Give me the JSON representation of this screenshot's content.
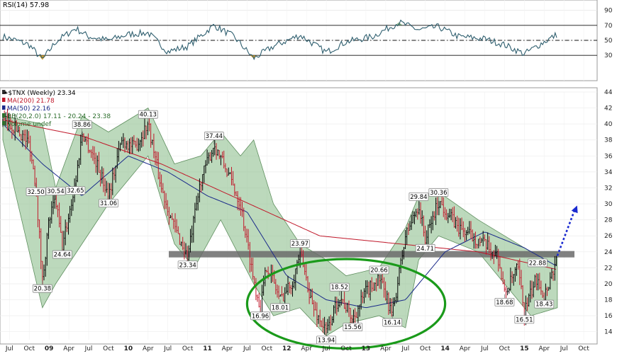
{
  "chart_data": [
    {
      "type": "line",
      "title": "RSI(14) 57.98",
      "indicator": "RSI",
      "period": 14,
      "last_value": 57.98,
      "ylim": [
        0,
        100
      ],
      "y_ticks": [
        30,
        50,
        70,
        90
      ],
      "reference_lines": [
        {
          "value": 70,
          "style": "solid"
        },
        {
          "value": 50,
          "style": "dash-dot"
        },
        {
          "value": 30,
          "style": "solid"
        }
      ],
      "colors": {
        "line": "#2e5e6e",
        "overbought_fill": "#3a7d3a",
        "oversold_fill": "#c8921e"
      },
      "series": [
        {
          "values": [
            {
              "x": "2008-06",
              "y": 55
            },
            {
              "x": "2008-08",
              "y": 50
            },
            {
              "x": "2008-10",
              "y": 44
            },
            {
              "x": "2008-12",
              "y": 24
            },
            {
              "x": "2009-02",
              "y": 48
            },
            {
              "x": "2009-05",
              "y": 66
            },
            {
              "x": "2009-07",
              "y": 55
            },
            {
              "x": "2009-10",
              "y": 50
            },
            {
              "x": "2010-01",
              "y": 58
            },
            {
              "x": "2010-04",
              "y": 60
            },
            {
              "x": "2010-07",
              "y": 35
            },
            {
              "x": "2010-10",
              "y": 42
            },
            {
              "x": "2011-02",
              "y": 70
            },
            {
              "x": "2011-05",
              "y": 55
            },
            {
              "x": "2011-08",
              "y": 26
            },
            {
              "x": "2011-11",
              "y": 42
            },
            {
              "x": "2012-03",
              "y": 57
            },
            {
              "x": "2012-07",
              "y": 34
            },
            {
              "x": "2012-10",
              "y": 48
            },
            {
              "x": "2013-02",
              "y": 55
            },
            {
              "x": "2013-06",
              "y": 74
            },
            {
              "x": "2013-09",
              "y": 64
            },
            {
              "x": "2013-12",
              "y": 68
            },
            {
              "x": "2014-03",
              "y": 55
            },
            {
              "x": "2014-07",
              "y": 52
            },
            {
              "x": "2014-10",
              "y": 44
            },
            {
              "x": "2015-01",
              "y": 32
            },
            {
              "x": "2015-04",
              "y": 48
            },
            {
              "x": "2015-06",
              "y": 58
            }
          ]
        }
      ]
    },
    {
      "type": "line",
      "title": "$TNX (Weekly) 23.34",
      "ylim": [
        13,
        44
      ],
      "y_ticks": [
        14,
        16,
        18,
        20,
        22,
        24,
        26,
        28,
        30,
        32,
        34,
        36,
        38,
        40,
        42,
        44
      ],
      "x_tick_labels": [
        "Jul",
        "Oct",
        "09",
        "Apr",
        "Jul",
        "Oct",
        "10",
        "Apr",
        "Jul",
        "Oct",
        "11",
        "Apr",
        "Jul",
        "Oct",
        "12",
        "Apr",
        "Jul",
        "Oct",
        "13",
        "Apr",
        "Jul",
        "Oct",
        "14",
        "Apr",
        "Jul",
        "Oct",
        "15",
        "Apr",
        "Jul",
        "Oct"
      ],
      "x_tick_dates": [
        "2008-07",
        "2008-10",
        "2009-01",
        "2009-04",
        "2009-07",
        "2009-10",
        "2010-01",
        "2010-04",
        "2010-07",
        "2010-10",
        "2011-01",
        "2011-04",
        "2011-07",
        "2011-10",
        "2012-01",
        "2012-04",
        "2012-07",
        "2012-10",
        "2013-01",
        "2013-04",
        "2013-07",
        "2013-10",
        "2014-01",
        "2014-04",
        "2014-07",
        "2014-10",
        "2015-01",
        "2015-04",
        "2015-07",
        "2015-10"
      ],
      "legend_placement": "top-left",
      "legend": [
        {
          "text": "❧$TNX (Weekly) 23.34",
          "color": "#000000"
        },
        {
          "text": "MA(200) 21.78",
          "color": "#c0182a"
        },
        {
          "text": "MA(50) 22.16",
          "color": "#1a2a8a"
        },
        {
          "text": "BB(20,2.0) 17.11 - 20.24 - 23.38",
          "color": "#2c6e2c"
        },
        {
          "text": "Volume undef",
          "color": "#2c6e2c"
        }
      ],
      "colors": {
        "price_up": "#000000",
        "price_down": "#c0182a",
        "ma200": "#c0182a",
        "ma50": "#1a2a8a",
        "bollinger_band": "#8fbf8f",
        "support_zone": "#6b6b6b",
        "base_ellipse": "#1a9a1a",
        "projection_arrow": "#1a2ad0"
      },
      "price_path": [
        {
          "x": "2008-06",
          "y": 40.5
        },
        {
          "x": "2008-08",
          "y": 39.5
        },
        {
          "x": "2008-10",
          "y": 37.5
        },
        {
          "x": "2008-11",
          "y": 32.5
        },
        {
          "x": "2008-12",
          "y": 20.38
        },
        {
          "x": "2009-01",
          "y": 28.0
        },
        {
          "x": "2009-02",
          "y": 30.54
        },
        {
          "x": "2009-03",
          "y": 24.64
        },
        {
          "x": "2009-05",
          "y": 32.65
        },
        {
          "x": "2009-06",
          "y": 38.86
        },
        {
          "x": "2009-08",
          "y": 35.5
        },
        {
          "x": "2009-10",
          "y": 31.06
        },
        {
          "x": "2009-12",
          "y": 38.0
        },
        {
          "x": "2010-02",
          "y": 37.0
        },
        {
          "x": "2010-04",
          "y": 40.13
        },
        {
          "x": "2010-06",
          "y": 32.0
        },
        {
          "x": "2010-08",
          "y": 27.0
        },
        {
          "x": "2010-10",
          "y": 23.34
        },
        {
          "x": "2010-12",
          "y": 33.0
        },
        {
          "x": "2011-02",
          "y": 37.44
        },
        {
          "x": "2011-04",
          "y": 34.0
        },
        {
          "x": "2011-06",
          "y": 30.0
        },
        {
          "x": "2011-08",
          "y": 20.5
        },
        {
          "x": "2011-09",
          "y": 16.96
        },
        {
          "x": "2011-10",
          "y": 22.5
        },
        {
          "x": "2011-12",
          "y": 18.01
        },
        {
          "x": "2012-02",
          "y": 20.5
        },
        {
          "x": "2012-03",
          "y": 23.97
        },
        {
          "x": "2012-05",
          "y": 17.0
        },
        {
          "x": "2012-07",
          "y": 13.94
        },
        {
          "x": "2012-09",
          "y": 18.52
        },
        {
          "x": "2012-11",
          "y": 15.56
        },
        {
          "x": "2013-01",
          "y": 19.0
        },
        {
          "x": "2013-03",
          "y": 20.66
        },
        {
          "x": "2013-05",
          "y": 16.14
        },
        {
          "x": "2013-07",
          "y": 26.0
        },
        {
          "x": "2013-09",
          "y": 29.84
        },
        {
          "x": "2013-10",
          "y": 25.5
        },
        {
          "x": "2013-12",
          "y": 30.36
        },
        {
          "x": "2014-03",
          "y": 27.0
        },
        {
          "x": "2014-06",
          "y": 25.5
        },
        {
          "x": "2014-09",
          "y": 23.5
        },
        {
          "x": "2014-10",
          "y": 18.68
        },
        {
          "x": "2014-12",
          "y": 22.0
        },
        {
          "x": "2015-01",
          "y": 16.51
        },
        {
          "x": "2015-03",
          "y": 21.0
        },
        {
          "x": "2015-04",
          "y": 18.43
        },
        {
          "x": "2015-06",
          "y": 23.34
        }
      ],
      "bollinger": {
        "upper": [
          {
            "x": "2008-06",
            "y": 41
          },
          {
            "x": "2008-12",
            "y": 40
          },
          {
            "x": "2009-02",
            "y": 32
          },
          {
            "x": "2009-06",
            "y": 41
          },
          {
            "x": "2009-10",
            "y": 39
          },
          {
            "x": "2010-04",
            "y": 42
          },
          {
            "x": "2010-08",
            "y": 35
          },
          {
            "x": "2010-12",
            "y": 36
          },
          {
            "x": "2011-03",
            "y": 39
          },
          {
            "x": "2011-06",
            "y": 36
          },
          {
            "x": "2011-08",
            "y": 38
          },
          {
            "x": "2011-11",
            "y": 30
          },
          {
            "x": "2012-03",
            "y": 25
          },
          {
            "x": "2012-07",
            "y": 23
          },
          {
            "x": "2012-10",
            "y": 21
          },
          {
            "x": "2013-03",
            "y": 22
          },
          {
            "x": "2013-07",
            "y": 27
          },
          {
            "x": "2013-09",
            "y": 31
          },
          {
            "x": "2013-12",
            "y": 31.5
          },
          {
            "x": "2014-06",
            "y": 28
          },
          {
            "x": "2014-10",
            "y": 26
          },
          {
            "x": "2015-02",
            "y": 24
          },
          {
            "x": "2015-06",
            "y": 24
          }
        ],
        "lower": [
          {
            "x": "2008-06",
            "y": 38
          },
          {
            "x": "2008-12",
            "y": 17
          },
          {
            "x": "2009-02",
            "y": 20
          },
          {
            "x": "2009-06",
            "y": 25
          },
          {
            "x": "2009-10",
            "y": 30
          },
          {
            "x": "2010-04",
            "y": 36
          },
          {
            "x": "2010-08",
            "y": 25
          },
          {
            "x": "2010-11",
            "y": 22
          },
          {
            "x": "2011-03",
            "y": 28
          },
          {
            "x": "2011-08",
            "y": 20
          },
          {
            "x": "2011-11",
            "y": 16
          },
          {
            "x": "2012-03",
            "y": 17
          },
          {
            "x": "2012-07",
            "y": 13.5
          },
          {
            "x": "2012-10",
            "y": 15
          },
          {
            "x": "2013-03",
            "y": 16
          },
          {
            "x": "2013-07",
            "y": 14.5
          },
          {
            "x": "2013-09",
            "y": 23
          },
          {
            "x": "2013-12",
            "y": 26
          },
          {
            "x": "2014-06",
            "y": 24
          },
          {
            "x": "2014-10",
            "y": 20
          },
          {
            "x": "2015-02",
            "y": 16
          },
          {
            "x": "2015-06",
            "y": 17
          }
        ]
      },
      "ma200": [
        {
          "x": "2008-06",
          "y": 40.5
        },
        {
          "x": "2009-06",
          "y": 38.5
        },
        {
          "x": "2010-06",
          "y": 35.0
        },
        {
          "x": "2011-06",
          "y": 30.5
        },
        {
          "x": "2012-06",
          "y": 26.0
        },
        {
          "x": "2013-06",
          "y": 25.0
        },
        {
          "x": "2014-06",
          "y": 24.0
        },
        {
          "x": "2015-06",
          "y": 21.78
        }
      ],
      "ma50": [
        {
          "x": "2008-06",
          "y": 40.0
        },
        {
          "x": "2008-12",
          "y": 35.0
        },
        {
          "x": "2009-06",
          "y": 31.0
        },
        {
          "x": "2010-01",
          "y": 36.0
        },
        {
          "x": "2010-07",
          "y": 34.0
        },
        {
          "x": "2011-01",
          "y": 31.0
        },
        {
          "x": "2011-07",
          "y": 29.0
        },
        {
          "x": "2012-01",
          "y": 21.0
        },
        {
          "x": "2012-07",
          "y": 18.0
        },
        {
          "x": "2013-01",
          "y": 17.0
        },
        {
          "x": "2013-07",
          "y": 18.0
        },
        {
          "x": "2014-01",
          "y": 24.0
        },
        {
          "x": "2014-07",
          "y": 26.5
        },
        {
          "x": "2015-01",
          "y": 24.5
        },
        {
          "x": "2015-06",
          "y": 22.16
        }
      ],
      "support_zone": {
        "y_low": 23.3,
        "y_high": 24.1
      },
      "base_ellipse": {
        "x_center": "2012-10",
        "x_half_width_months": 15,
        "y_center": 17.5,
        "y_half_height": 5.6
      },
      "projection_arrow": {
        "from": {
          "x": "2015-06",
          "y": 23.5
        },
        "to": {
          "x": "2015-09",
          "y": 29.8
        }
      },
      "annotations": [
        {
          "text": "32.50",
          "x": "2008-11",
          "y": 32.5,
          "pos": "below"
        },
        {
          "text": "20.38",
          "x": "2008-12",
          "y": 20.38,
          "pos": "below"
        },
        {
          "text": "30.54",
          "x": "2009-02",
          "y": 30.54,
          "pos": "above"
        },
        {
          "text": "24.64",
          "x": "2009-03",
          "y": 24.64,
          "pos": "below"
        },
        {
          "text": "32.65",
          "x": "2009-05",
          "y": 32.65,
          "pos": "below"
        },
        {
          "text": "38.86",
          "x": "2009-06",
          "y": 38.86,
          "pos": "above"
        },
        {
          "text": "31.06",
          "x": "2009-10",
          "y": 31.06,
          "pos": "below"
        },
        {
          "text": "40.13",
          "x": "2010-04",
          "y": 40.13,
          "pos": "above"
        },
        {
          "text": "23.34",
          "x": "2010-10",
          "y": 23.34,
          "pos": "below"
        },
        {
          "text": "37.44",
          "x": "2011-02",
          "y": 37.44,
          "pos": "above"
        },
        {
          "text": "16.96",
          "x": "2011-09",
          "y": 16.96,
          "pos": "below"
        },
        {
          "text": "18.01",
          "x": "2011-12",
          "y": 18.01,
          "pos": "below"
        },
        {
          "text": "23.97",
          "x": "2012-03",
          "y": 23.97,
          "pos": "above"
        },
        {
          "text": "13.94",
          "x": "2012-07",
          "y": 13.94,
          "pos": "below"
        },
        {
          "text": "18.52",
          "x": "2012-09",
          "y": 18.52,
          "pos": "above"
        },
        {
          "text": "15.56",
          "x": "2012-11",
          "y": 15.56,
          "pos": "below"
        },
        {
          "text": "20.66",
          "x": "2013-03",
          "y": 20.66,
          "pos": "above"
        },
        {
          "text": "16.14",
          "x": "2013-05",
          "y": 16.14,
          "pos": "below"
        },
        {
          "text": "29.84",
          "x": "2013-09",
          "y": 29.84,
          "pos": "above"
        },
        {
          "text": "30.36",
          "x": "2013-12",
          "y": 30.36,
          "pos": "above"
        },
        {
          "text": "24.71",
          "x": "2013-10",
          "y": 24.71,
          "pos": "on-zone"
        },
        {
          "text": "18.68",
          "x": "2014-10",
          "y": 18.68,
          "pos": "below"
        },
        {
          "text": "16.51",
          "x": "2015-01",
          "y": 16.51,
          "pos": "below"
        },
        {
          "text": "18.43",
          "x": "2015-04",
          "y": 18.43,
          "pos": "below"
        },
        {
          "text": "22.88",
          "x": "2015-03",
          "y": 22.88,
          "pos": "on-zone"
        }
      ]
    }
  ]
}
